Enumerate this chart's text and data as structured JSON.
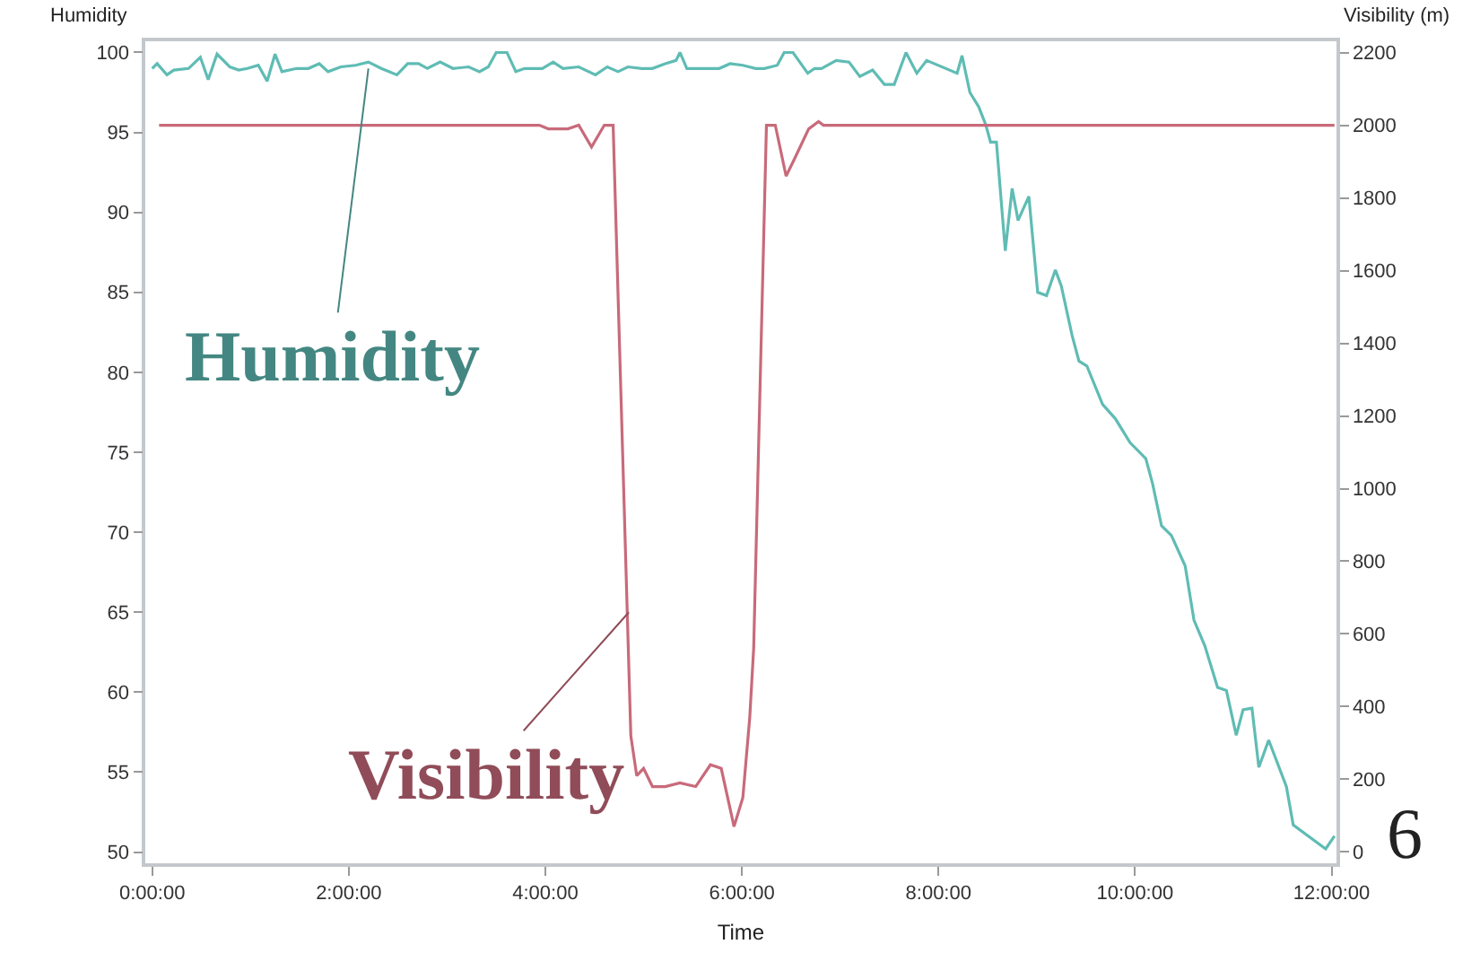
{
  "chart_data": {
    "type": "line",
    "xlabel": "Time",
    "ylabel": "Humidity",
    "y2label": "Visibility (m)",
    "xlim": [
      -0.07,
      12.05
    ],
    "xticks": [
      {
        "value": 0,
        "label": "0:00:00"
      },
      {
        "value": 2,
        "label": "2:00:00"
      },
      {
        "value": 4,
        "label": "4:00:00"
      },
      {
        "value": 6,
        "label": "6:00:00"
      },
      {
        "value": 8,
        "label": "8:00:00"
      },
      {
        "value": 10,
        "label": "10:00:00"
      },
      {
        "value": 12,
        "label": "12:00:00"
      }
    ],
    "ylim": [
      49.3,
      100.7
    ],
    "yticks": [
      50,
      55,
      60,
      65,
      70,
      75,
      80,
      85,
      90,
      95,
      100
    ],
    "y2lim": [
      -31,
      2231
    ],
    "y2ticks": [
      0,
      200,
      400,
      600,
      800,
      1000,
      1200,
      1400,
      1600,
      1800,
      2000,
      2200
    ],
    "grid": false,
    "marker": "none",
    "line_style": "solid",
    "series": [
      {
        "color": "#5fbcb4",
        "x": [
          0,
          0.05,
          0.15,
          0.22,
          0.37,
          0.49,
          0.57,
          0.66,
          0.79,
          0.88,
          0.97,
          1.08,
          1.17,
          1.25,
          1.32,
          1.47,
          1.59,
          1.7,
          1.79,
          1.92,
          2.07,
          2.2,
          2.33,
          2.49,
          2.6,
          2.71,
          2.8,
          2.93,
          3.06,
          3.22,
          3.33,
          3.42,
          3.5,
          3.61,
          3.7,
          3.79,
          3.97,
          4.08,
          4.18,
          4.34,
          4.51,
          4.63,
          4.74,
          4.84,
          4.98,
          5.09,
          5.22,
          5.33,
          5.37,
          5.44,
          5.77,
          5.88,
          6.01,
          6.14,
          6.23,
          6.36,
          6.43,
          6.52,
          6.67,
          6.74,
          6.81,
          6.96,
          7.09,
          7.2,
          7.33,
          7.45,
          7.55,
          7.67,
          7.78,
          7.88,
          8.19,
          8.24,
          8.32,
          8.41,
          8.48,
          8.53,
          8.59,
          8.68,
          8.75,
          8.81,
          8.92,
          9.01,
          9.1,
          9.19,
          9.25,
          9.36,
          9.43,
          9.51,
          9.67,
          9.8,
          9.95,
          10.11,
          10.18,
          10.27,
          10.37,
          10.51,
          10.6,
          10.71,
          10.84,
          10.93,
          11.03,
          11.1,
          11.19,
          11.26,
          11.36,
          11.54,
          11.61,
          11.94,
          12.03
        ],
        "values": [
          99.0,
          99.3,
          98.6,
          98.9,
          99.0,
          99.7,
          98.3,
          99.9,
          99.1,
          98.9,
          99.0,
          99.2,
          98.2,
          99.9,
          98.8,
          99.0,
          99.0,
          99.3,
          98.8,
          99.1,
          99.2,
          99.4,
          99.0,
          98.6,
          99.3,
          99.3,
          99.0,
          99.4,
          99.0,
          99.1,
          98.8,
          99.1,
          100,
          100,
          98.8,
          99.0,
          99.0,
          99.4,
          99.0,
          99.1,
          98.6,
          99.1,
          98.8,
          99.1,
          99.0,
          99.0,
          99.3,
          99.5,
          100,
          99.0,
          99.0,
          99.3,
          99.2,
          99.0,
          99.0,
          99.2,
          100,
          100,
          98.7,
          99.0,
          99.0,
          99.5,
          99.4,
          98.5,
          98.9,
          98.0,
          98.0,
          100,
          98.7,
          99.5,
          98.7,
          99.8,
          97.5,
          96.6,
          95.5,
          94.4,
          94.4,
          87.6,
          91.5,
          89.5,
          91.0,
          85.0,
          84.8,
          86.4,
          85.4,
          82.3,
          80.7,
          80.4,
          78.0,
          77.1,
          75.6,
          74.6,
          73.0,
          70.4,
          69.8,
          67.9,
          64.5,
          62.9,
          60.3,
          60.1,
          57.3,
          58.9,
          59.0,
          55.3,
          57.0,
          54.1,
          51.7,
          50.2,
          51.0
        ]
      },
      {
        "color": "#c86a7a",
        "axis": "y2",
        "x": [
          0.07,
          3.94,
          4.03,
          4.23,
          4.34,
          4.47,
          4.6,
          4.69,
          4.87,
          4.93,
          5.0,
          5.09,
          5.22,
          5.37,
          5.53,
          5.68,
          5.79,
          5.92,
          6.01,
          6.08,
          6.12,
          6.25,
          6.34,
          6.45,
          6.54,
          6.68,
          6.78,
          6.83,
          12.03
        ],
        "values": [
          2000,
          2000,
          1990,
          1990,
          2000,
          1940,
          2000,
          2000,
          320,
          210,
          230,
          180,
          180,
          190,
          180,
          240,
          230,
          70,
          150,
          370,
          560,
          2000,
          2000,
          1860,
          1910,
          1990,
          2010,
          2000,
          2000
        ]
      }
    ],
    "annotations": [
      {
        "text": "Humidity",
        "x": 2.2,
        "y": 99
      },
      {
        "text": "Visibility",
        "x": 4.85,
        "y": 65
      },
      "6"
    ]
  }
}
